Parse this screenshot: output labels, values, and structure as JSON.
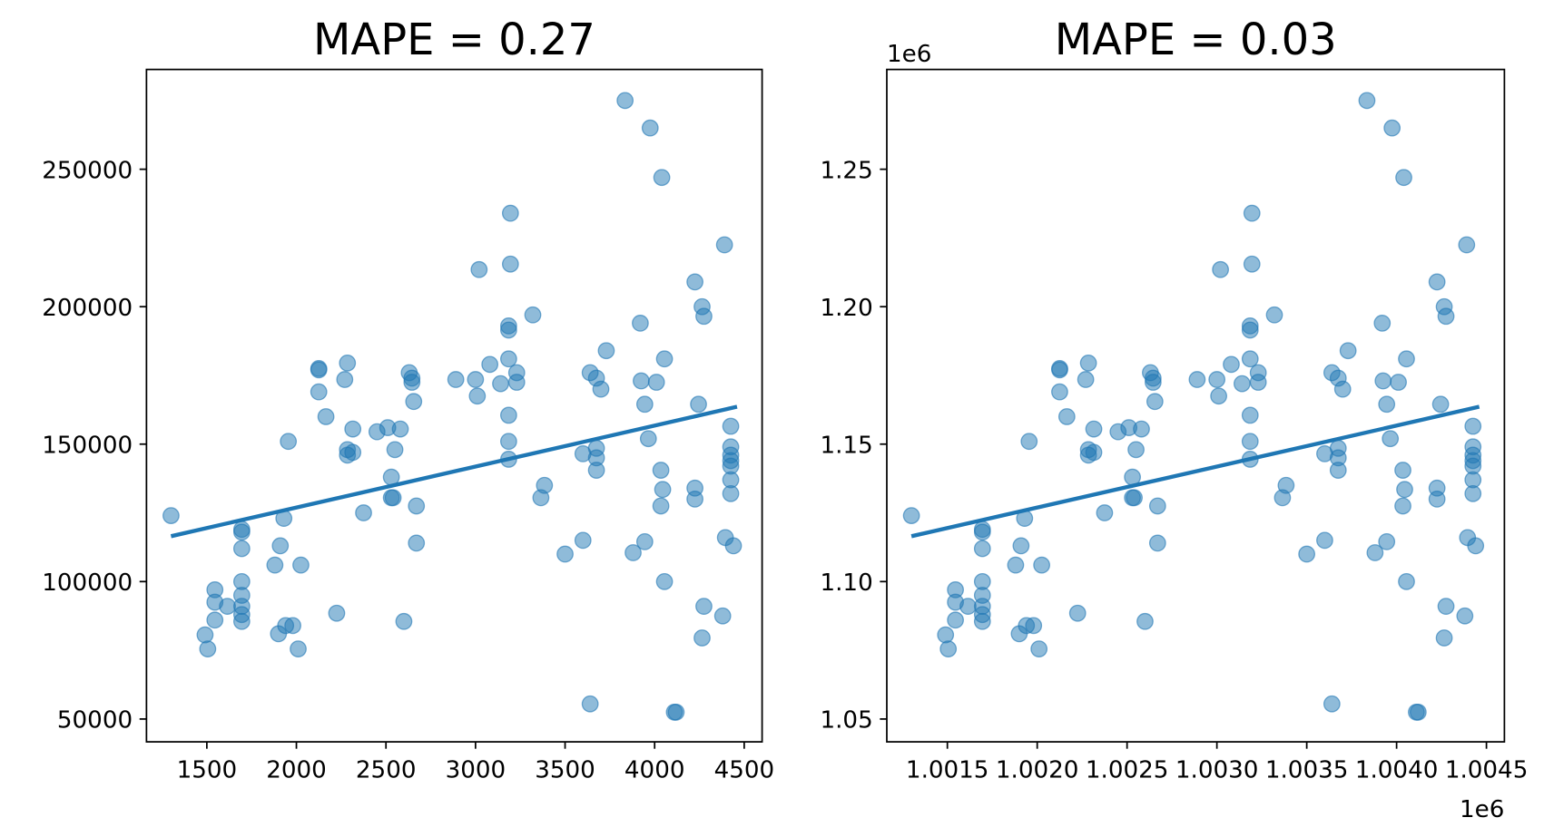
{
  "chart_data": [
    {
      "type": "scatter",
      "title": "MAPE = 0.27",
      "xlim": [
        1163,
        4600
      ],
      "ylim": [
        41700,
        286300
      ],
      "xticks": [
        1500,
        2000,
        2500,
        3000,
        3500,
        4000,
        4500
      ],
      "yticks": [
        50000,
        100000,
        150000,
        200000,
        250000
      ],
      "points": {
        "color": "#1f77b4",
        "x": [
          1300,
          1490,
          1505,
          1545,
          1545,
          1545,
          1615,
          1695,
          1695,
          1695,
          1695,
          1695,
          1695,
          1695,
          1695,
          1880,
          1900,
          1910,
          1930,
          1940,
          1955,
          1980,
          2010,
          2025,
          2125,
          2125,
          2125,
          2165,
          2225,
          2270,
          2285,
          2285,
          2285,
          2315,
          2315,
          2375,
          2450,
          2510,
          2530,
          2530,
          2540,
          2550,
          2580,
          2600,
          2630,
          2645,
          2645,
          2655,
          2670,
          2670,
          2890,
          3000,
          3020,
          3010,
          3080,
          3140,
          3195,
          3195,
          3185,
          3185,
          3185,
          3185,
          3185,
          3185,
          3230,
          3230,
          3320,
          3365,
          3385,
          3500,
          3600,
          3600,
          3640,
          3640,
          3675,
          3675,
          3675,
          3675,
          3700,
          3730,
          3835,
          3880,
          3920,
          3925,
          3945,
          3945,
          3965,
          3975,
          4010,
          4040,
          4035,
          4045,
          4035,
          4055,
          4055,
          4110,
          4120,
          4225,
          4225,
          4225,
          4245,
          4265,
          4275,
          4265,
          4275,
          4380,
          4390,
          4395,
          4425,
          4425,
          4425,
          4425,
          4425,
          4425,
          4425,
          4440
        ],
        "values": [
          124000,
          80600,
          75500,
          97000,
          92500,
          86000,
          91000,
          119000,
          118000,
          112000,
          100000,
          95000,
          91000,
          88000,
          85500,
          106000,
          81000,
          113000,
          123000,
          84000,
          151000,
          84000,
          75500,
          106000,
          177500,
          177000,
          169000,
          160000,
          88500,
          173500,
          179500,
          148000,
          146000,
          147000,
          155500,
          125000,
          154500,
          156000,
          138000,
          130500,
          130500,
          148000,
          155500,
          85500,
          176000,
          174000,
          172500,
          165500,
          127500,
          114000,
          173500,
          173500,
          213500,
          167500,
          179000,
          172000,
          234000,
          215500,
          193000,
          191500,
          181000,
          160500,
          151000,
          144500,
          176000,
          172500,
          197000,
          130500,
          135000,
          110000,
          115000,
          146500,
          176000,
          55500,
          174000,
          148500,
          145000,
          140500,
          170000,
          184000,
          275000,
          110500,
          194000,
          173000,
          114500,
          164500,
          152000,
          265000,
          172500,
          247000,
          140500,
          133500,
          127500,
          100000,
          181000,
          52500,
          52500,
          209000,
          134000,
          130000,
          164500,
          200000,
          196500,
          79500,
          91000,
          87500,
          222500,
          116000,
          156500,
          149000,
          146000,
          144000,
          142000,
          137000,
          132000,
          113000
        ]
      },
      "fit": {
        "color": "#1f77b4",
        "x": [
          1300,
          4460
        ],
        "values": [
          116500,
          163600
        ]
      }
    },
    {
      "type": "scatter",
      "title": "MAPE = 0.03",
      "x_offset_label": "1e6",
      "y_offset_label": "1e6",
      "xlim": [
        1001163,
        1004600
      ],
      "ylim": [
        1041700,
        1286300
      ],
      "xticks": [
        {
          "value": 1001500,
          "label": "1.0015"
        },
        {
          "value": 1002000,
          "label": "1.0020"
        },
        {
          "value": 1002500,
          "label": "1.0025"
        },
        {
          "value": 1003000,
          "label": "1.0030"
        },
        {
          "value": 1003500,
          "label": "1.0035"
        },
        {
          "value": 1004000,
          "label": "1.0040"
        },
        {
          "value": 1004500,
          "label": "1.0045"
        }
      ],
      "yticks": [
        {
          "value": 1050000,
          "label": "1.05"
        },
        {
          "value": 1100000,
          "label": "1.10"
        },
        {
          "value": 1150000,
          "label": "1.15"
        },
        {
          "value": 1200000,
          "label": "1.20"
        },
        {
          "value": 1250000,
          "label": "1.25"
        }
      ],
      "points": {
        "color": "#1f77b4",
        "x": [
          1001300,
          1001490,
          1001505,
          1001545,
          1001545,
          1001545,
          1001615,
          1001695,
          1001695,
          1001695,
          1001695,
          1001695,
          1001695,
          1001695,
          1001695,
          1001880,
          1001900,
          1001910,
          1001930,
          1001940,
          1001955,
          1001980,
          1002010,
          1002025,
          1002125,
          1002125,
          1002125,
          1002165,
          1002225,
          1002270,
          1002285,
          1002285,
          1002285,
          1002315,
          1002315,
          1002375,
          1002450,
          1002510,
          1002530,
          1002530,
          1002540,
          1002550,
          1002580,
          1002600,
          1002630,
          1002645,
          1002645,
          1002655,
          1002670,
          1002670,
          1002890,
          1003000,
          1003020,
          1003010,
          1003080,
          1003140,
          1003195,
          1003195,
          1003185,
          1003185,
          1003185,
          1003185,
          1003185,
          1003185,
          1003230,
          1003230,
          1003320,
          1003365,
          1003385,
          1003500,
          1003600,
          1003600,
          1003640,
          1003640,
          1003675,
          1003675,
          1003675,
          1003675,
          1003700,
          1003730,
          1003835,
          1003880,
          1003920,
          1003925,
          1003945,
          1003945,
          1003965,
          1003975,
          1004010,
          1004040,
          1004035,
          1004045,
          1004035,
          1004055,
          1004055,
          1004110,
          1004120,
          1004225,
          1004225,
          1004225,
          1004245,
          1004265,
          1004275,
          1004265,
          1004275,
          1004380,
          1004390,
          1004395,
          1004425,
          1004425,
          1004425,
          1004425,
          1004425,
          1004425,
          1004425,
          1004440
        ],
        "values": [
          1124000,
          1080600,
          1075500,
          1097000,
          1092500,
          1086000,
          1091000,
          1119000,
          1118000,
          1112000,
          1100000,
          1095000,
          1091000,
          1088000,
          1085500,
          1106000,
          1081000,
          1113000,
          1123000,
          1084000,
          1151000,
          1084000,
          1075500,
          1106000,
          1177500,
          1177000,
          1169000,
          1160000,
          1088500,
          1173500,
          1179500,
          1148000,
          1146000,
          1147000,
          1155500,
          1125000,
          1154500,
          1156000,
          1138000,
          1130500,
          1130500,
          1148000,
          1155500,
          1085500,
          1176000,
          1174000,
          1172500,
          1165500,
          1127500,
          1114000,
          1173500,
          1173500,
          1213500,
          1167500,
          1179000,
          1172000,
          1234000,
          1215500,
          1193000,
          1191500,
          1181000,
          1160500,
          1151000,
          1144500,
          1176000,
          1172500,
          1197000,
          1130500,
          1135000,
          1110000,
          1115000,
          1146500,
          1176000,
          1055500,
          1174000,
          1148500,
          1145000,
          1140500,
          1170000,
          1184000,
          1275000,
          1110500,
          1194000,
          1173000,
          1114500,
          1164500,
          1152000,
          1265000,
          1172500,
          1247000,
          1140500,
          1133500,
          1127500,
          1100000,
          1181000,
          1052500,
          1052500,
          1209000,
          1134000,
          1130000,
          1164500,
          1200000,
          1196500,
          1079500,
          1091000,
          1087500,
          1222500,
          1116000,
          1156500,
          1149000,
          1146000,
          1144000,
          1142000,
          1137000,
          1132000,
          1113000
        ]
      },
      "fit": {
        "color": "#1f77b4",
        "x": [
          1001300,
          1004460
        ],
        "values": [
          1116500,
          1163600
        ]
      }
    }
  ]
}
